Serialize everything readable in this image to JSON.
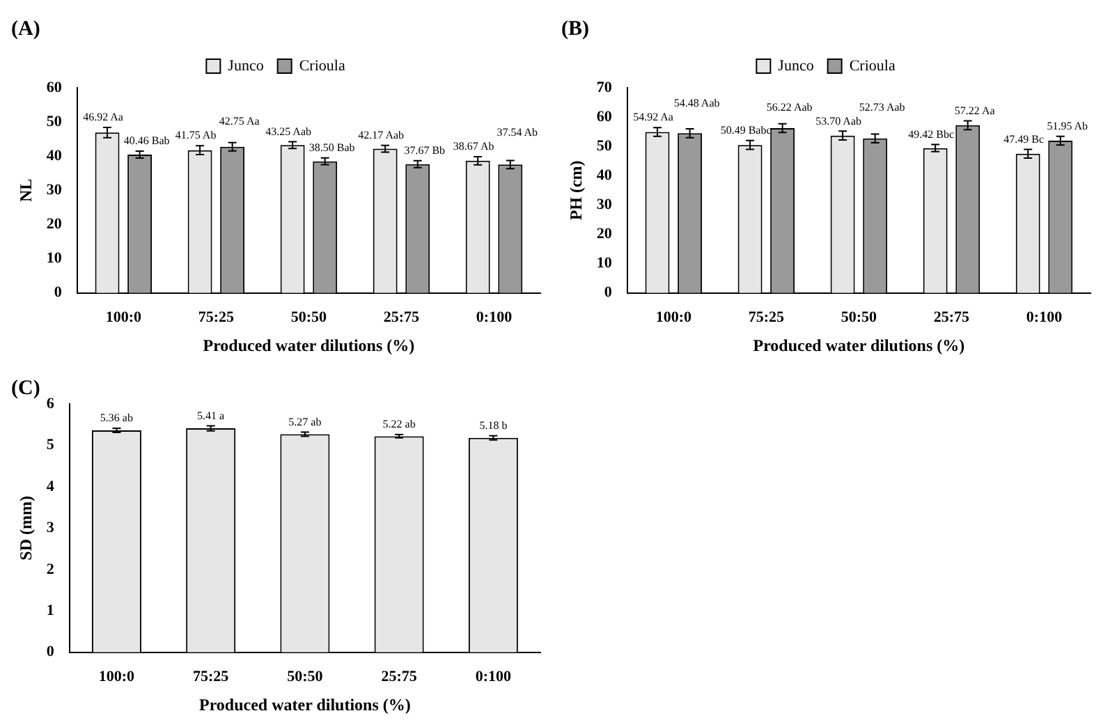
{
  "chart_data": [
    {
      "type": "bar",
      "title": "(A)",
      "categories": [
        "100:0",
        "75:25",
        "50:50",
        "25:75",
        "0:100"
      ],
      "xlabel": "Produced water dilutions (%)",
      "ylabel": "NL",
      "ylim": [
        0,
        60
      ],
      "yticks": [
        0,
        10,
        20,
        30,
        40,
        50,
        60
      ],
      "legend": "top",
      "grid": false,
      "series": [
        {
          "name": "Junco",
          "color": "#e6e6e6",
          "values": [
            46.92,
            41.75,
            43.25,
            42.17,
            38.67
          ],
          "errors": [
            1.5,
            1.3,
            1.0,
            1.0,
            1.2
          ],
          "value_labels": [
            "46.92 Aa",
            "41.75 Ab",
            "43.25 Aab",
            "42.17 Aab",
            "38.67 Ab"
          ]
        },
        {
          "name": "Crioula",
          "color": "#9a9a9a",
          "values": [
            40.46,
            42.75,
            38.5,
            37.67,
            37.54
          ],
          "errors": [
            1.0,
            1.2,
            1.0,
            1.0,
            1.2
          ],
          "value_labels": [
            "40.46 Bab",
            "42.75 Aa",
            "38.50 Bab",
            "37.67 Bb",
            "37.54 Ab"
          ]
        }
      ]
    },
    {
      "type": "bar",
      "title": "(B)",
      "categories": [
        "100:0",
        "75:25",
        "50:50",
        "25:75",
        "0:100"
      ],
      "xlabel": "Produced water dilutions (%)",
      "ylabel": "PH (cm)",
      "ylim": [
        0,
        70
      ],
      "yticks": [
        0,
        10,
        20,
        30,
        40,
        50,
        60,
        70
      ],
      "legend": "top",
      "grid": false,
      "series": [
        {
          "name": "Junco",
          "color": "#e6e6e6",
          "values": [
            54.92,
            50.49,
            53.7,
            49.42,
            47.49
          ],
          "errors": [
            1.5,
            1.5,
            1.5,
            1.2,
            1.5
          ],
          "value_labels": [
            "54.92 Aa",
            "50.49 Babc",
            "53.70 Aab",
            "49.42 Bbc",
            "47.49 Bc"
          ]
        },
        {
          "name": "Crioula",
          "color": "#9a9a9a",
          "values": [
            54.48,
            56.22,
            52.73,
            57.22,
            51.95
          ],
          "errors": [
            1.5,
            1.5,
            1.5,
            1.5,
            1.5
          ],
          "value_labels": [
            "54.48 Aab",
            "56.22 Aab",
            "52.73 Aab",
            "57.22 Aa",
            "51.95 Ab"
          ]
        }
      ]
    },
    {
      "type": "bar",
      "title": "(C)",
      "categories": [
        "100:0",
        "75:25",
        "50:50",
        "25:75",
        "0:100"
      ],
      "xlabel": "Produced water dilutions (%)",
      "ylabel": "SD (mm)",
      "ylim": [
        0,
        6
      ],
      "yticks": [
        0,
        1,
        2,
        3,
        4,
        5,
        6
      ],
      "grid": false,
      "color": "#e6e6e6",
      "values": [
        5.36,
        5.41,
        5.27,
        5.22,
        5.18
      ],
      "errors": [
        0.05,
        0.06,
        0.05,
        0.04,
        0.05
      ],
      "value_labels": [
        "5.36 ab",
        "5.41 a",
        "5.27 ab",
        "5.22 ab",
        "5.18 b"
      ]
    }
  ]
}
